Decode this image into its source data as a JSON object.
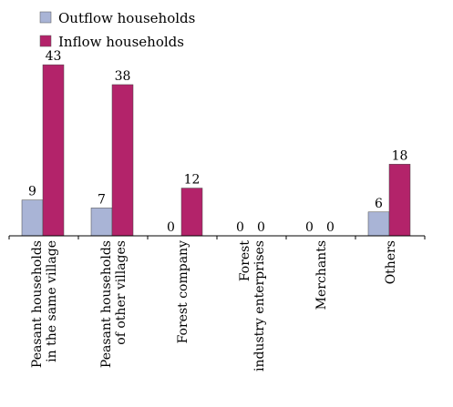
{
  "chart_data": {
    "type": "bar",
    "categories": [
      [
        "Peasant households",
        "in the same village"
      ],
      [
        "Peasant households",
        "of other villages"
      ],
      [
        "Forest company"
      ],
      [
        "Forest",
        "industry enterprises"
      ],
      [
        "Merchants"
      ],
      [
        "Others"
      ]
    ],
    "series": [
      {
        "name": "Outflow households",
        "values": [
          9,
          7,
          0,
          0,
          0,
          6
        ],
        "color": "#a9b4d6"
      },
      {
        "name": "Inflow households",
        "values": [
          43,
          38,
          12,
          0,
          0,
          18
        ],
        "color": "#b3236a"
      }
    ],
    "ylim": [
      0,
      46
    ],
    "legend": "top-left",
    "grid": false
  }
}
